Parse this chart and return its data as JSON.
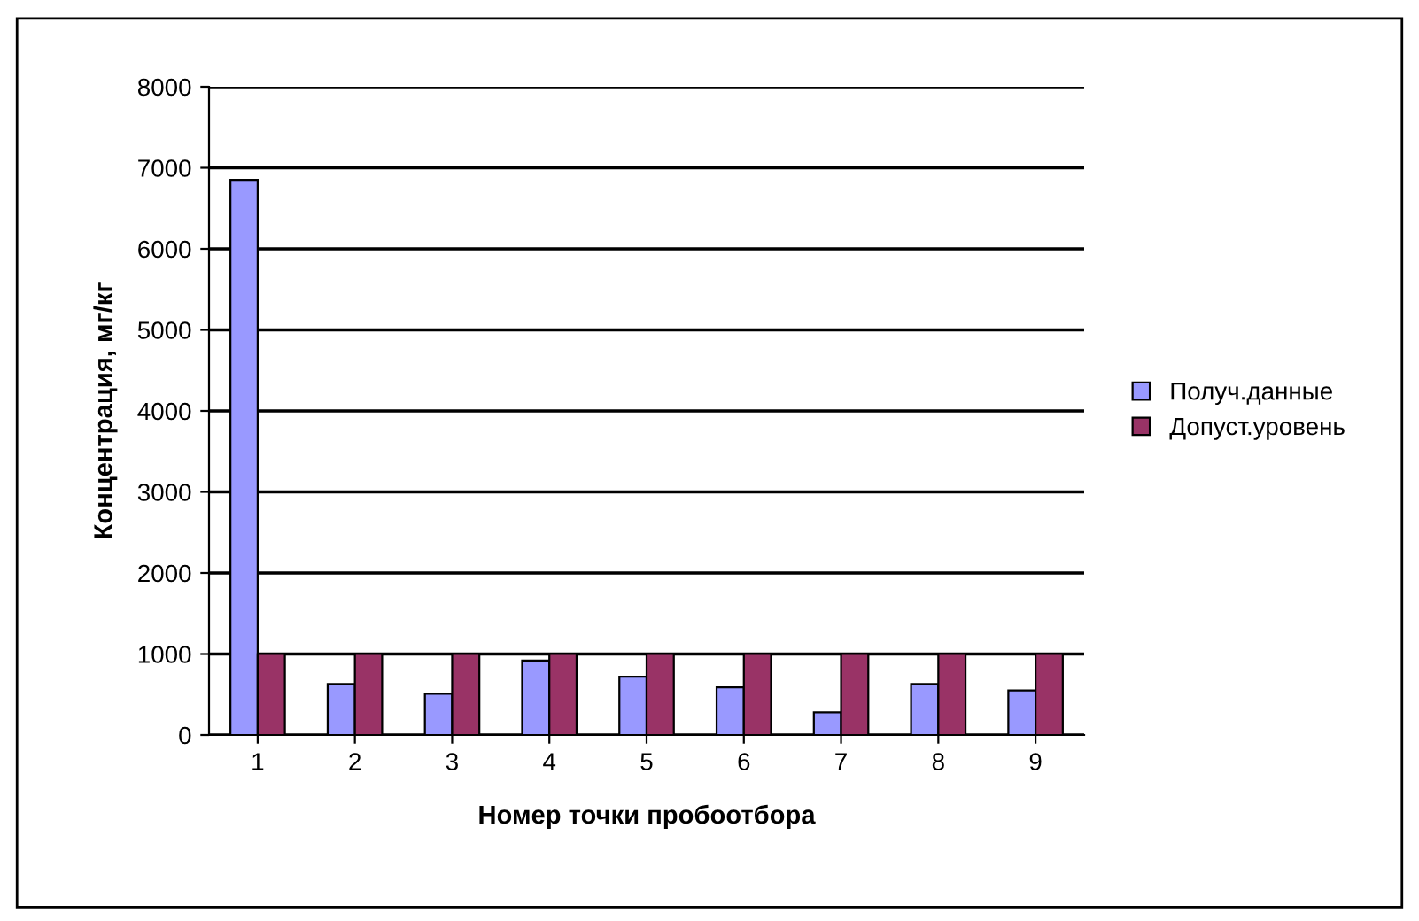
{
  "chart_data": {
    "type": "bar",
    "xlabel": "Номер точки пробоотбора",
    "ylabel": "Концентрация, мг/кг",
    "categories": [
      "1",
      "2",
      "3",
      "4",
      "5",
      "6",
      "7",
      "8",
      "9"
    ],
    "series": [
      {
        "name": "Получ.данные",
        "color": "#9999ff",
        "values": [
          6850,
          630,
          510,
          920,
          720,
          590,
          280,
          630,
          550
        ]
      },
      {
        "name": "Допуст.уровень",
        "color": "#993366",
        "values": [
          1000,
          1000,
          1000,
          1000,
          1000,
          1000,
          1000,
          1000,
          1000
        ]
      }
    ],
    "ylim": [
      0,
      8000
    ],
    "yticks": [
      0,
      1000,
      2000,
      3000,
      4000,
      5000,
      6000,
      7000,
      8000
    ],
    "grid": "y",
    "legend": "right"
  }
}
